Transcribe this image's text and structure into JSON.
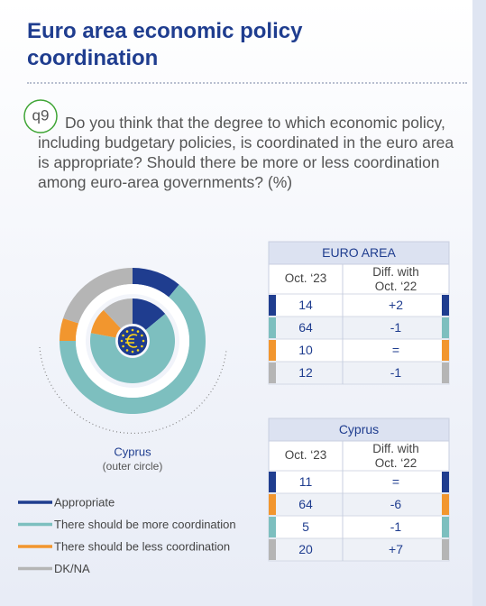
{
  "title": "Euro area economic policy coordination",
  "question_number": "q9",
  "question": "Do you think that the degree to which economic policy, including budgetary policies, is coordinated in the euro area is appropriate? Should there be more or less coordination among euro-area governments? (%)",
  "chart_data": {
    "type": "donut",
    "categories": [
      "Appropriate",
      "There should be more coordination",
      "There should be less coordination",
      "DK/NA"
    ],
    "colors": [
      "#1f3d8f",
      "#7dbfbf",
      "#f2962e",
      "#b5b5b5"
    ],
    "series": [
      {
        "name": "EURO AREA",
        "ring": "inner",
        "values": [
          14,
          64,
          10,
          12
        ]
      },
      {
        "name": "Cyprus",
        "ring": "outer",
        "values": [
          11,
          64,
          5,
          20
        ]
      }
    ],
    "ring_note": "(outer circle)"
  },
  "tables": [
    {
      "col_headers": [
        "Oct. ‘23",
        "Diff. with Oct. ‘22"
      ],
      "diffs": [
        "+2",
        "-1",
        "=",
        "-1"
      ],
      "marker_colors": [
        "#1f3d8f",
        "#7dbfbf",
        "#f2962e",
        "#b5b5b5"
      ]
    },
    {
      "col_headers": [
        "Oct. ‘23",
        "Diff. with Oct. ‘22"
      ],
      "diffs": [
        "=",
        "-6",
        "-1",
        "+7"
      ],
      "marker_colors": [
        "#1f3d8f",
        "#f2962e",
        "#7dbfbf",
        "#b5b5b5"
      ]
    }
  ]
}
